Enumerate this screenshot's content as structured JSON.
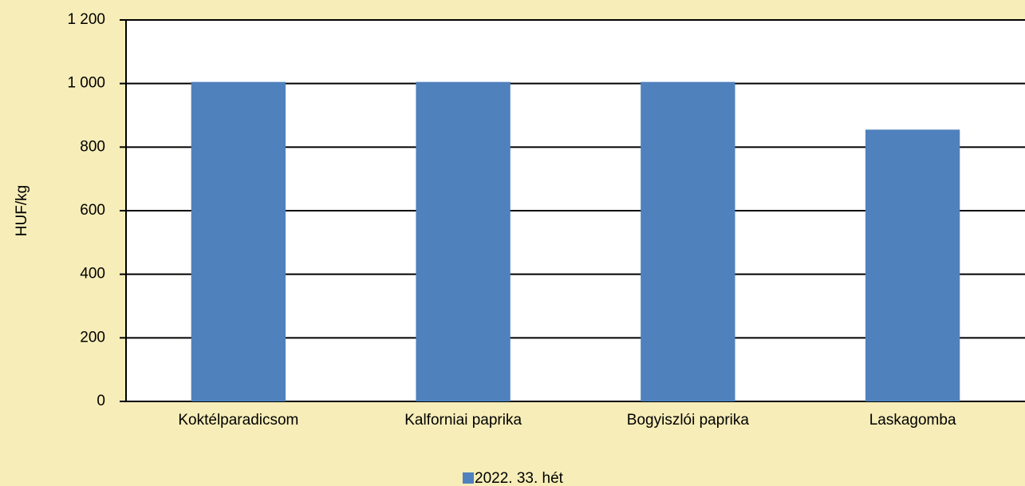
{
  "chart_data": {
    "type": "bar",
    "y_label": "HUF/kg",
    "categories": [
      "Koktélparadicsom",
      "Kalforniai paprika",
      "Bogyiszlói paprika",
      "Laskagomba"
    ],
    "series": [
      {
        "name": "2022. 33. hét",
        "color": "#4f81bd",
        "values": [
          1005,
          1005,
          1005,
          855
        ]
      }
    ],
    "ylim": [
      0,
      1200
    ],
    "yticks": [
      0,
      200,
      400,
      600,
      800,
      {
        "value": 1000,
        "label": "1 000"
      },
      {
        "value": 1200,
        "label": "1 200"
      }
    ],
    "grid": true
  }
}
